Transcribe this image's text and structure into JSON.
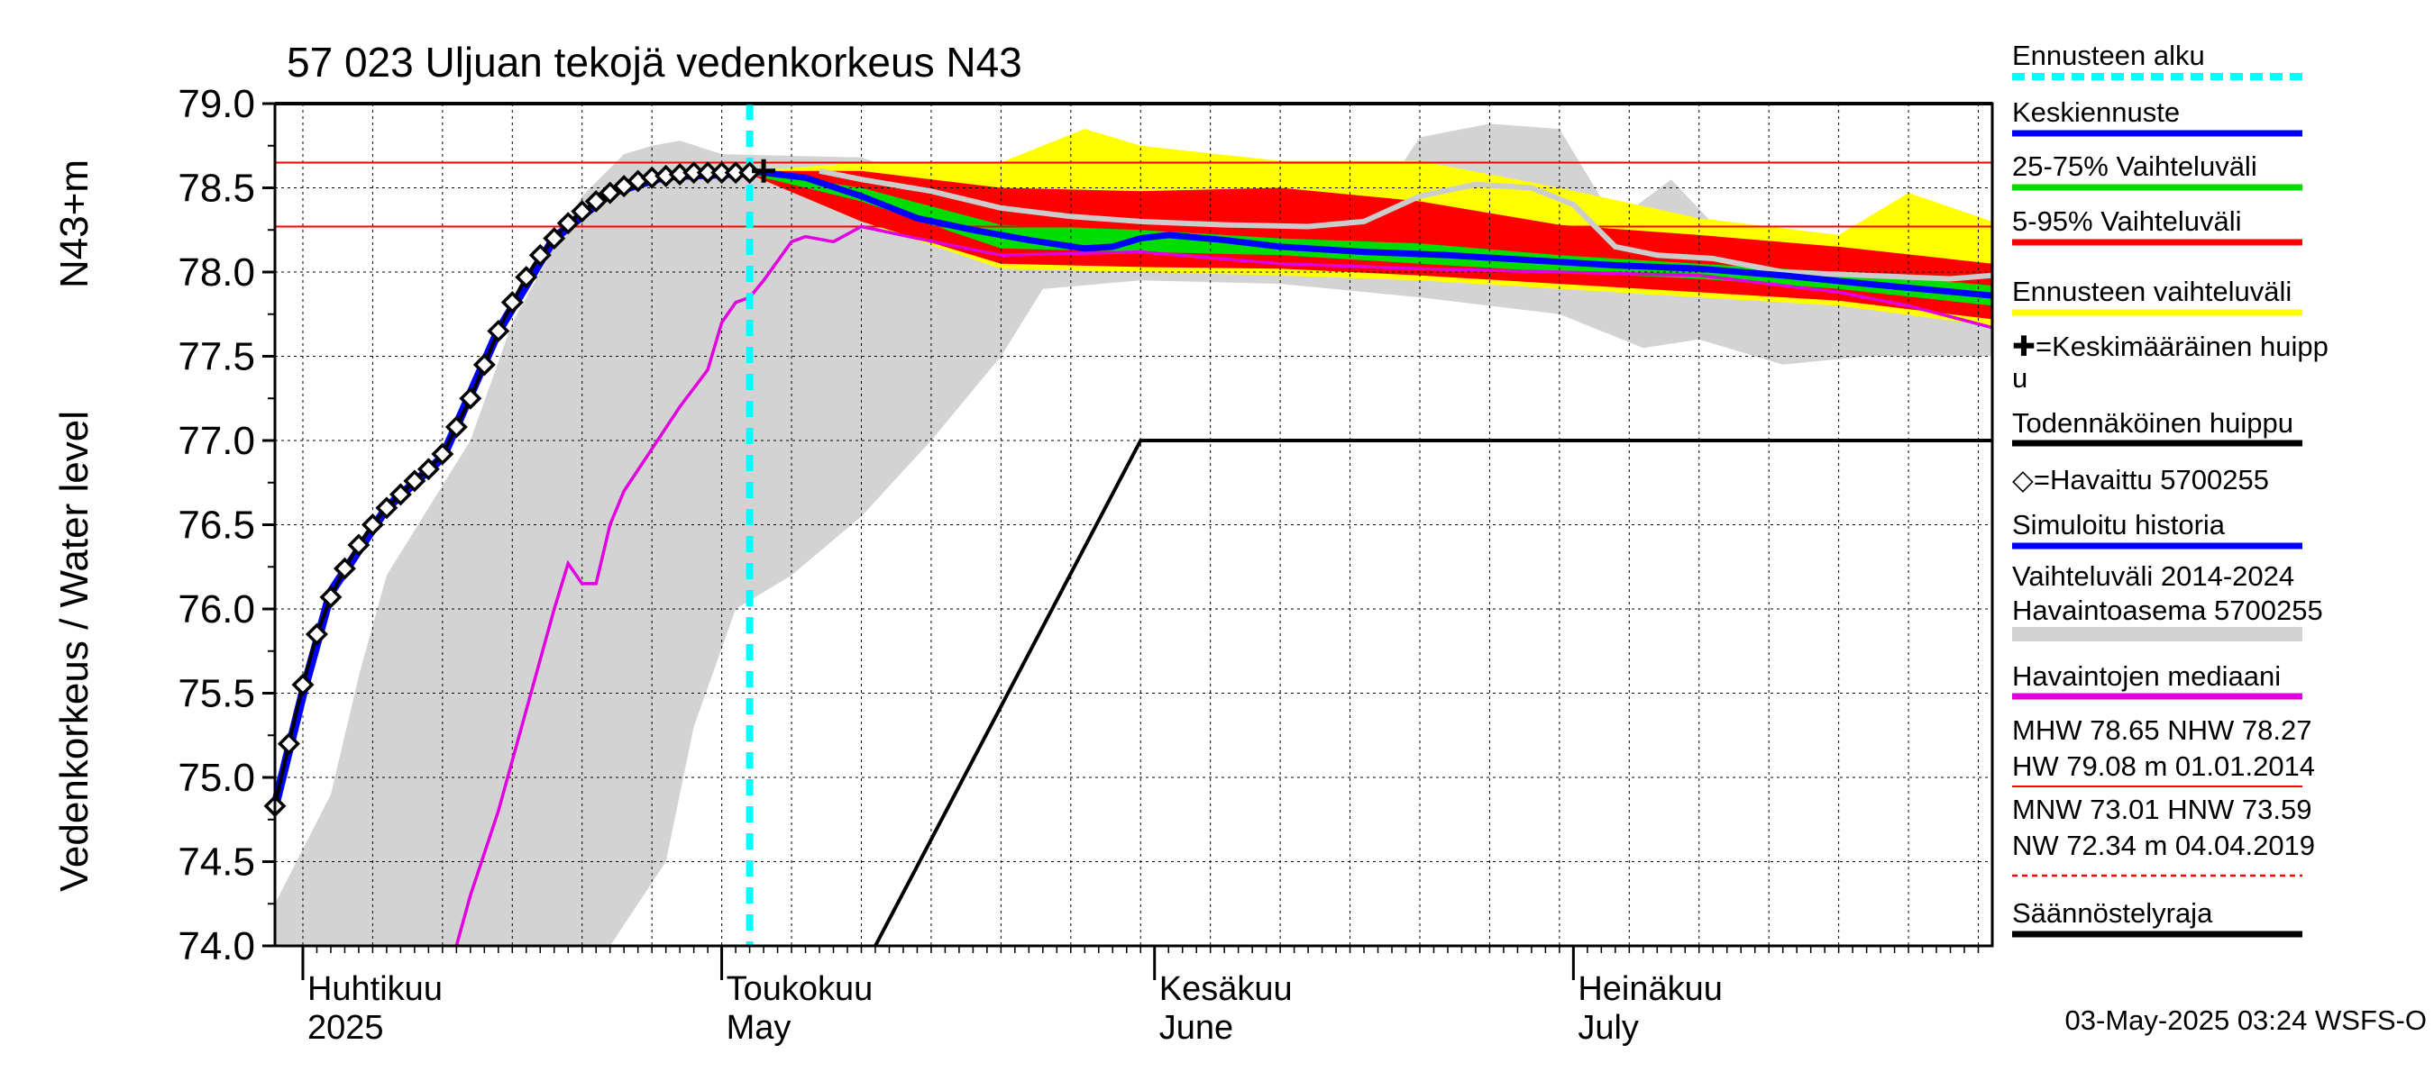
{
  "chart_data": {
    "type": "line",
    "title": "57 023 Uljuan tekojä vedenkorkeus N43",
    "ylabel": "Vedenkorkeus / Water level",
    "ylabel_unit": "N43+m",
    "ylim": [
      74.0,
      79.0
    ],
    "yticks": [
      "74.0",
      "74.5",
      "75.0",
      "75.5",
      "76.0",
      "76.5",
      "77.0",
      "77.5",
      "78.0",
      "78.5",
      "79.0"
    ],
    "months": [
      {
        "fi": "Huhtikuu",
        "en": "2025",
        "day": 0
      },
      {
        "fi": "Toukokuu",
        "en": "May",
        "day": 30
      },
      {
        "fi": "Kesäkuu",
        "en": "June",
        "day": 61
      },
      {
        "fi": "Heinäkuu",
        "en": "July",
        "day": 91
      }
    ],
    "x_range_days": [
      -2,
      121
    ],
    "forecast_start_day": 32,
    "reference_lines": {
      "MHW": 78.65,
      "NHW": 78.27
    },
    "regulation_limit": {
      "name": "Säännöstelyraja",
      "points": [
        [
          -2,
          79.0
        ],
        [
          121,
          79.0
        ],
        [
          41,
          74.0
        ],
        [
          60,
          77.0
        ],
        [
          121,
          77.0
        ]
      ]
    },
    "series": [
      {
        "name": "=Havaittu 5700255",
        "color": "#000000",
        "points": [
          [
            -2,
            74.83
          ],
          [
            -1,
            75.2
          ],
          [
            0,
            75.55
          ],
          [
            1,
            75.85
          ],
          [
            2,
            76.07
          ],
          [
            3,
            76.24
          ],
          [
            4,
            76.38
          ],
          [
            5,
            76.5
          ],
          [
            6,
            76.6
          ],
          [
            7,
            76.68
          ],
          [
            8,
            76.76
          ],
          [
            9,
            76.83
          ],
          [
            10,
            76.92
          ],
          [
            11,
            77.08
          ],
          [
            12,
            77.25
          ],
          [
            13,
            77.45
          ],
          [
            14,
            77.65
          ],
          [
            15,
            77.82
          ],
          [
            16,
            77.97
          ],
          [
            17,
            78.1
          ],
          [
            18,
            78.2
          ],
          [
            19,
            78.29
          ],
          [
            20,
            78.36
          ],
          [
            21,
            78.42
          ],
          [
            22,
            78.47
          ],
          [
            23,
            78.51
          ],
          [
            24,
            78.54
          ],
          [
            25,
            78.56
          ],
          [
            26,
            78.57
          ],
          [
            27,
            78.58
          ],
          [
            28,
            78.59
          ],
          [
            29,
            78.59
          ],
          [
            30,
            78.59
          ],
          [
            31,
            78.59
          ],
          [
            32,
            78.59
          ]
        ]
      },
      {
        "name": "Keskiennuste",
        "color": "#0000ff",
        "points": [
          [
            32,
            78.6
          ],
          [
            36,
            78.56
          ],
          [
            40,
            78.45
          ],
          [
            44,
            78.32
          ],
          [
            48,
            78.25
          ],
          [
            52,
            78.19
          ],
          [
            56,
            78.14
          ],
          [
            58,
            78.15
          ],
          [
            60,
            78.2
          ],
          [
            62,
            78.22
          ],
          [
            66,
            78.19
          ],
          [
            70,
            78.15
          ],
          [
            76,
            78.12
          ],
          [
            82,
            78.1
          ],
          [
            88,
            78.07
          ],
          [
            94,
            78.04
          ],
          [
            100,
            78.02
          ],
          [
            106,
            77.98
          ],
          [
            112,
            77.93
          ],
          [
            121,
            77.86
          ]
        ]
      },
      {
        "name": "Havaintojen mediaani",
        "color": "#e000e0",
        "points": [
          [
            11,
            74.0
          ],
          [
            12,
            74.3
          ],
          [
            14,
            74.8
          ],
          [
            16,
            75.4
          ],
          [
            18,
            76.0
          ],
          [
            19,
            76.27
          ],
          [
            20,
            76.15
          ],
          [
            21,
            76.15
          ],
          [
            22,
            76.5
          ],
          [
            23,
            76.7
          ],
          [
            25,
            76.95
          ],
          [
            27,
            77.2
          ],
          [
            29,
            77.42
          ],
          [
            30,
            77.7
          ],
          [
            31,
            77.82
          ],
          [
            32,
            77.85
          ],
          [
            33,
            77.95
          ],
          [
            35,
            78.18
          ],
          [
            36,
            78.21
          ],
          [
            38,
            78.18
          ],
          [
            40,
            78.27
          ],
          [
            44,
            78.2
          ],
          [
            50,
            78.1
          ],
          [
            60,
            78.12
          ],
          [
            70,
            78.05
          ],
          [
            80,
            78.02
          ],
          [
            90,
            78.0
          ],
          [
            100,
            77.98
          ],
          [
            110,
            77.88
          ],
          [
            115,
            77.8
          ],
          [
            121,
            77.67
          ]
        ]
      },
      {
        "name": "Simuloitu historia",
        "color": "#0000ff",
        "points": [
          [
            -2,
            74.83
          ],
          [
            0,
            75.5
          ],
          [
            2,
            76.1
          ],
          [
            6,
            76.6
          ],
          [
            10,
            76.9
          ],
          [
            14,
            77.65
          ],
          [
            18,
            78.2
          ],
          [
            22,
            78.47
          ],
          [
            26,
            78.57
          ],
          [
            32,
            78.59
          ]
        ]
      },
      {
        "name": "Vaihteluväli 2014-2024 Havaintoasema 5700255",
        "color": "#d3d3d3",
        "upper": [
          [
            -2,
            74.25
          ],
          [
            2,
            74.9
          ],
          [
            4,
            75.6
          ],
          [
            6,
            76.2
          ],
          [
            9,
            76.6
          ],
          [
            12,
            77.0
          ],
          [
            15,
            77.7
          ],
          [
            17,
            78.0
          ],
          [
            20,
            78.45
          ],
          [
            23,
            78.7
          ],
          [
            25,
            78.75
          ],
          [
            27,
            78.78
          ],
          [
            30,
            78.7
          ],
          [
            40,
            78.68
          ],
          [
            50,
            78.4
          ],
          [
            60,
            78.33
          ],
          [
            70,
            78.31
          ],
          [
            75,
            78.3
          ],
          [
            78,
            78.55
          ],
          [
            80,
            78.8
          ],
          [
            85,
            78.88
          ],
          [
            90,
            78.85
          ],
          [
            94,
            78.3
          ],
          [
            98,
            78.55
          ],
          [
            102,
            78.2
          ],
          [
            108,
            78.05
          ],
          [
            114,
            78.05
          ],
          [
            121,
            78.0
          ]
        ],
        "lower": [
          [
            -2,
            74.0
          ],
          [
            10,
            74.0
          ],
          [
            18,
            74.0
          ],
          [
            22,
            74.0
          ],
          [
            26,
            74.5
          ],
          [
            28,
            75.3
          ],
          [
            31,
            76.0
          ],
          [
            35,
            76.2
          ],
          [
            40,
            76.55
          ],
          [
            45,
            77.0
          ],
          [
            50,
            77.5
          ],
          [
            53,
            77.9
          ],
          [
            60,
            77.95
          ],
          [
            70,
            77.93
          ],
          [
            80,
            77.85
          ],
          [
            90,
            77.75
          ],
          [
            96,
            77.55
          ],
          [
            100,
            77.6
          ],
          [
            106,
            77.45
          ],
          [
            112,
            77.5
          ],
          [
            121,
            77.5
          ]
        ]
      },
      {
        "name": "Ennusteen vaihteluväli",
        "color": "#ffff00",
        "upper": [
          [
            32,
            78.6
          ],
          [
            40,
            78.65
          ],
          [
            50,
            78.65
          ],
          [
            56,
            78.85
          ],
          [
            60,
            78.75
          ],
          [
            70,
            78.66
          ],
          [
            80,
            78.66
          ],
          [
            90,
            78.5
          ],
          [
            100,
            78.32
          ],
          [
            110,
            78.22
          ],
          [
            115,
            78.47
          ],
          [
            121,
            78.3
          ]
        ],
        "lower": [
          [
            32,
            78.58
          ],
          [
            40,
            78.3
          ],
          [
            50,
            78.02
          ],
          [
            60,
            78.0
          ],
          [
            70,
            77.98
          ],
          [
            80,
            77.95
          ],
          [
            90,
            77.9
          ],
          [
            100,
            77.85
          ],
          [
            110,
            77.8
          ],
          [
            121,
            77.68
          ]
        ]
      },
      {
        "name": "5-95% Vaihteluväli",
        "color": "#ff0000",
        "upper": [
          [
            32,
            78.6
          ],
          [
            40,
            78.6
          ],
          [
            50,
            78.5
          ],
          [
            60,
            78.48
          ],
          [
            70,
            78.5
          ],
          [
            80,
            78.42
          ],
          [
            90,
            78.28
          ],
          [
            100,
            78.22
          ],
          [
            110,
            78.15
          ],
          [
            121,
            78.05
          ]
        ],
        "lower": [
          [
            32,
            78.58
          ],
          [
            40,
            78.3
          ],
          [
            50,
            78.05
          ],
          [
            60,
            78.03
          ],
          [
            70,
            78.02
          ],
          [
            80,
            77.98
          ],
          [
            90,
            77.93
          ],
          [
            100,
            77.88
          ],
          [
            110,
            77.83
          ],
          [
            121,
            77.72
          ]
        ]
      },
      {
        "name": "25-75% Vaihteluväli",
        "color": "#00dd00",
        "upper": [
          [
            32,
            78.6
          ],
          [
            40,
            78.5
          ],
          [
            50,
            78.28
          ],
          [
            60,
            78.25
          ],
          [
            70,
            78.2
          ],
          [
            80,
            78.17
          ],
          [
            90,
            78.1
          ],
          [
            100,
            78.05
          ],
          [
            110,
            78.0
          ],
          [
            121,
            77.92
          ]
        ],
        "lower": [
          [
            32,
            78.58
          ],
          [
            40,
            78.42
          ],
          [
            50,
            78.14
          ],
          [
            60,
            78.12
          ],
          [
            70,
            78.1
          ],
          [
            80,
            78.05
          ],
          [
            90,
            78.0
          ],
          [
            100,
            77.96
          ],
          [
            110,
            77.9
          ],
          [
            121,
            77.8
          ]
        ]
      },
      {
        "name": "light-history-line",
        "color": "#cccccc",
        "points": [
          [
            37,
            78.6
          ],
          [
            40,
            78.55
          ],
          [
            45,
            78.48
          ],
          [
            50,
            78.38
          ],
          [
            55,
            78.33
          ],
          [
            60,
            78.3
          ],
          [
            66,
            78.28
          ],
          [
            72,
            78.27
          ],
          [
            76,
            78.3
          ],
          [
            80,
            78.45
          ],
          [
            84,
            78.52
          ],
          [
            88,
            78.5
          ],
          [
            91,
            78.4
          ],
          [
            94,
            78.15
          ],
          [
            97,
            78.1
          ],
          [
            101,
            78.08
          ],
          [
            106,
            78.0
          ],
          [
            112,
            77.98
          ],
          [
            118,
            77.96
          ],
          [
            121,
            77.98
          ]
        ]
      }
    ],
    "peak_marker": {
      "name": "=Keskimääräinen huippu",
      "day": 33,
      "value": 78.6
    }
  },
  "legend": [
    {
      "label": "Ennusteen alku",
      "color": "#00ffff",
      "style": "dashed"
    },
    {
      "label": "Keskiennuste",
      "color": "#0000ff",
      "style": "solid"
    },
    {
      "label": "25-75% Vaihteluväli",
      "color": "#00dd00",
      "style": "solid"
    },
    {
      "label": "5-95% Vaihteluväli",
      "color": "#ff0000",
      "style": "solid"
    },
    {
      "label": "Ennusteen vaihteluväli",
      "color": "#ffff00",
      "style": "solid"
    },
    {
      "label": "✚=Keskimääräinen huipp",
      "label2": "u",
      "color": "#000000",
      "style": "none"
    },
    {
      "label": "Todennäköinen huippu",
      "color": "#000000",
      "style": "solid"
    },
    {
      "label": "◇=Havaittu 5700255",
      "color": "#000000",
      "style": "none"
    },
    {
      "label": "Simuloitu historia",
      "color": "#0000ff",
      "style": "solid"
    },
    {
      "label": "Vaihteluväli 2014-2024",
      "label2": " Havaintoasema 5700255",
      "color": "#d3d3d3",
      "style": "solid"
    },
    {
      "label": "Havaintojen mediaani",
      "color": "#e000e0",
      "style": "solid"
    },
    {
      "label": "MHW  78.65 NHW  78.27",
      "label2": "HW  79.08 m 01.01.2014",
      "color": "#ff0000",
      "style": "thin"
    },
    {
      "label": "MNW  73.01 HNW  73.59",
      "label2": "NW  72.34 m 04.04.2019",
      "color": "#ff0000",
      "style": "dotted"
    },
    {
      "label": "Säännöstelyraja",
      "color": "#000000",
      "style": "solid"
    }
  ],
  "footer": "03-May-2025 03:24 WSFS-O"
}
